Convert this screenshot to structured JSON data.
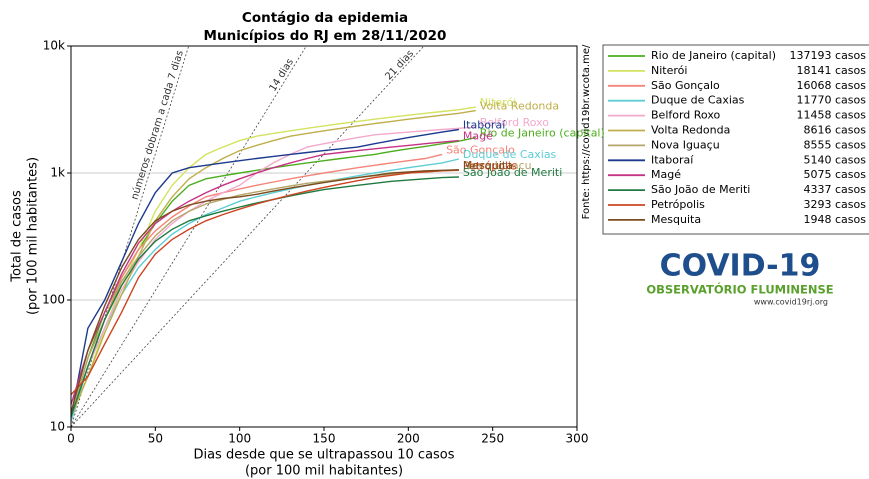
{
  "chart_data": {
    "type": "line",
    "title": [
      "Contágio da epidemia",
      "Municípios do RJ em 28/11/2020"
    ],
    "x_label": [
      "Dias desde que se ultrapassou 10 casos",
      "(por 100 mil habitantes)"
    ],
    "y_label": [
      "Total de casos",
      "(por 100 mil habitantes)"
    ],
    "log_y": true,
    "grid": true,
    "legend": "right",
    "xlim": [
      0,
      300
    ],
    "xticks": [
      0,
      50,
      100,
      150,
      200,
      250,
      300
    ],
    "ylim": [
      10,
      10000
    ],
    "yticks": [
      10,
      100,
      {
        "value": 1000,
        "label": "1k"
      },
      {
        "value": 10000,
        "label": "10k"
      }
    ],
    "x": [
      0,
      10,
      20,
      30,
      40,
      50,
      60,
      70,
      80,
      90,
      100,
      110,
      120,
      130,
      140,
      150,
      160,
      170,
      180,
      190,
      200,
      210,
      220,
      230,
      240,
      250
    ],
    "series": [
      {
        "name": "Rio de Janeiro (capital)",
        "legend_cases": "137193 casos",
        "color": "#4cae1e",
        "values": [
          12,
          35,
          80,
          150,
          250,
          400,
          600,
          800,
          900,
          950,
          1000,
          1050,
          1100,
          1150,
          1200,
          1250,
          1300,
          1350,
          1400,
          1480,
          1550,
          1620,
          1700,
          1780,
          1900,
          null
        ]
      },
      {
        "name": "Niterói",
        "legend_cases": "18141 casos",
        "color": "#d3e35e",
        "values": [
          12,
          25,
          60,
          130,
          250,
          500,
          800,
          1100,
          1400,
          1600,
          1800,
          1950,
          2050,
          2150,
          2250,
          2350,
          2450,
          2550,
          2650,
          2750,
          2850,
          2950,
          3050,
          3150,
          3300,
          null
        ]
      },
      {
        "name": "São Gonçalo",
        "legend_cases": "16068 casos",
        "color": "#f4857a",
        "values": [
          11,
          30,
          70,
          150,
          250,
          350,
          450,
          550,
          650,
          700,
          750,
          800,
          850,
          900,
          950,
          1000,
          1050,
          1100,
          1150,
          1200,
          1250,
          1300,
          1400,
          null,
          null,
          null
        ]
      },
      {
        "name": "Duque de Caxias",
        "legend_cases": "11770 casos",
        "color": "#5fcdd4",
        "values": [
          11,
          30,
          60,
          110,
          180,
          250,
          330,
          400,
          470,
          530,
          600,
          650,
          700,
          750,
          800,
          850,
          900,
          950,
          1000,
          1050,
          1100,
          1150,
          1200,
          1290,
          null,
          null
        ]
      },
      {
        "name": "Belford Roxo",
        "legend_cases": "11458 casos",
        "color": "#f3a9cc",
        "values": [
          13,
          30,
          60,
          120,
          200,
          300,
          400,
          500,
          600,
          700,
          800,
          1000,
          1200,
          1400,
          1600,
          1700,
          1800,
          1900,
          2000,
          2050,
          2100,
          2150,
          2200,
          2250,
          2300,
          null
        ]
      },
      {
        "name": "Volta Redonda",
        "legend_cases": "8616 casos",
        "color": "#bfae4a",
        "values": [
          12,
          25,
          55,
          110,
          220,
          420,
          650,
          900,
          1100,
          1300,
          1500,
          1650,
          1800,
          1950,
          2050,
          2150,
          2250,
          2350,
          2450,
          2550,
          2650,
          2750,
          2850,
          2950,
          3100,
          null
        ]
      },
      {
        "name": "Nova Iguaçu",
        "legend_cases": "8555 casos",
        "color": "#b5a56a",
        "values": [
          12,
          35,
          70,
          140,
          220,
          320,
          420,
          500,
          570,
          620,
          670,
          710,
          750,
          790,
          830,
          860,
          890,
          920,
          950,
          980,
          1000,
          1020,
          1040,
          1060,
          null,
          null
        ]
      },
      {
        "name": "Itaboraí",
        "legend_cases": "5140 casos",
        "color": "#1b3a8e",
        "values": [
          12,
          60,
          100,
          200,
          400,
          700,
          1000,
          1100,
          1150,
          1200,
          1250,
          1300,
          1350,
          1400,
          1450,
          1500,
          1550,
          1600,
          1700,
          1800,
          1900,
          2000,
          2100,
          2200,
          null,
          null
        ]
      },
      {
        "name": "Magé",
        "legend_cases": "5075 casos",
        "color": "#c53384",
        "values": [
          15,
          40,
          80,
          160,
          280,
          400,
          500,
          600,
          700,
          800,
          900,
          1000,
          1100,
          1200,
          1300,
          1400,
          1450,
          1500,
          1550,
          1600,
          1650,
          1700,
          1750,
          1800,
          null,
          null
        ]
      },
      {
        "name": "São João de Meriti",
        "legend_cases": "4337 casos",
        "color": "#1f7a40",
        "values": [
          12,
          30,
          70,
          130,
          210,
          290,
          360,
          420,
          460,
          500,
          540,
          580,
          620,
          660,
          700,
          740,
          770,
          800,
          830,
          860,
          880,
          900,
          920,
          930,
          null,
          null
        ]
      },
      {
        "name": "Petrópolis",
        "legend_cases": "3293 casos",
        "color": "#cc4420",
        "values": [
          18,
          25,
          45,
          80,
          150,
          230,
          300,
          360,
          420,
          470,
          520,
          570,
          620,
          670,
          720,
          770,
          820,
          870,
          920,
          960,
          1000,
          1020,
          1040,
          1050,
          null,
          null
        ]
      },
      {
        "name": "Mesquita",
        "legend_cases": "1948 casos",
        "color": "#7b4b1c",
        "values": [
          13,
          40,
          90,
          180,
          300,
          420,
          500,
          560,
          600,
          630,
          650,
          680,
          720,
          760,
          800,
          840,
          880,
          920,
          960,
          1000,
          1020,
          1040,
          1050,
          1060,
          null,
          null
        ]
      }
    ],
    "doubling_lines": [
      {
        "days": 7,
        "label": "números dobram a cada 7 dias"
      },
      {
        "days": 14,
        "label": "14 dias"
      },
      {
        "days": 21,
        "label": "21 dias"
      }
    ],
    "source": "Fonte: https://covid19br.wcota.me/",
    "logo": {
      "title": "COVID-19",
      "subtitle": "OBSERVATÓRIO FLUMINENSE",
      "url": "www.covid19rj.org"
    }
  }
}
